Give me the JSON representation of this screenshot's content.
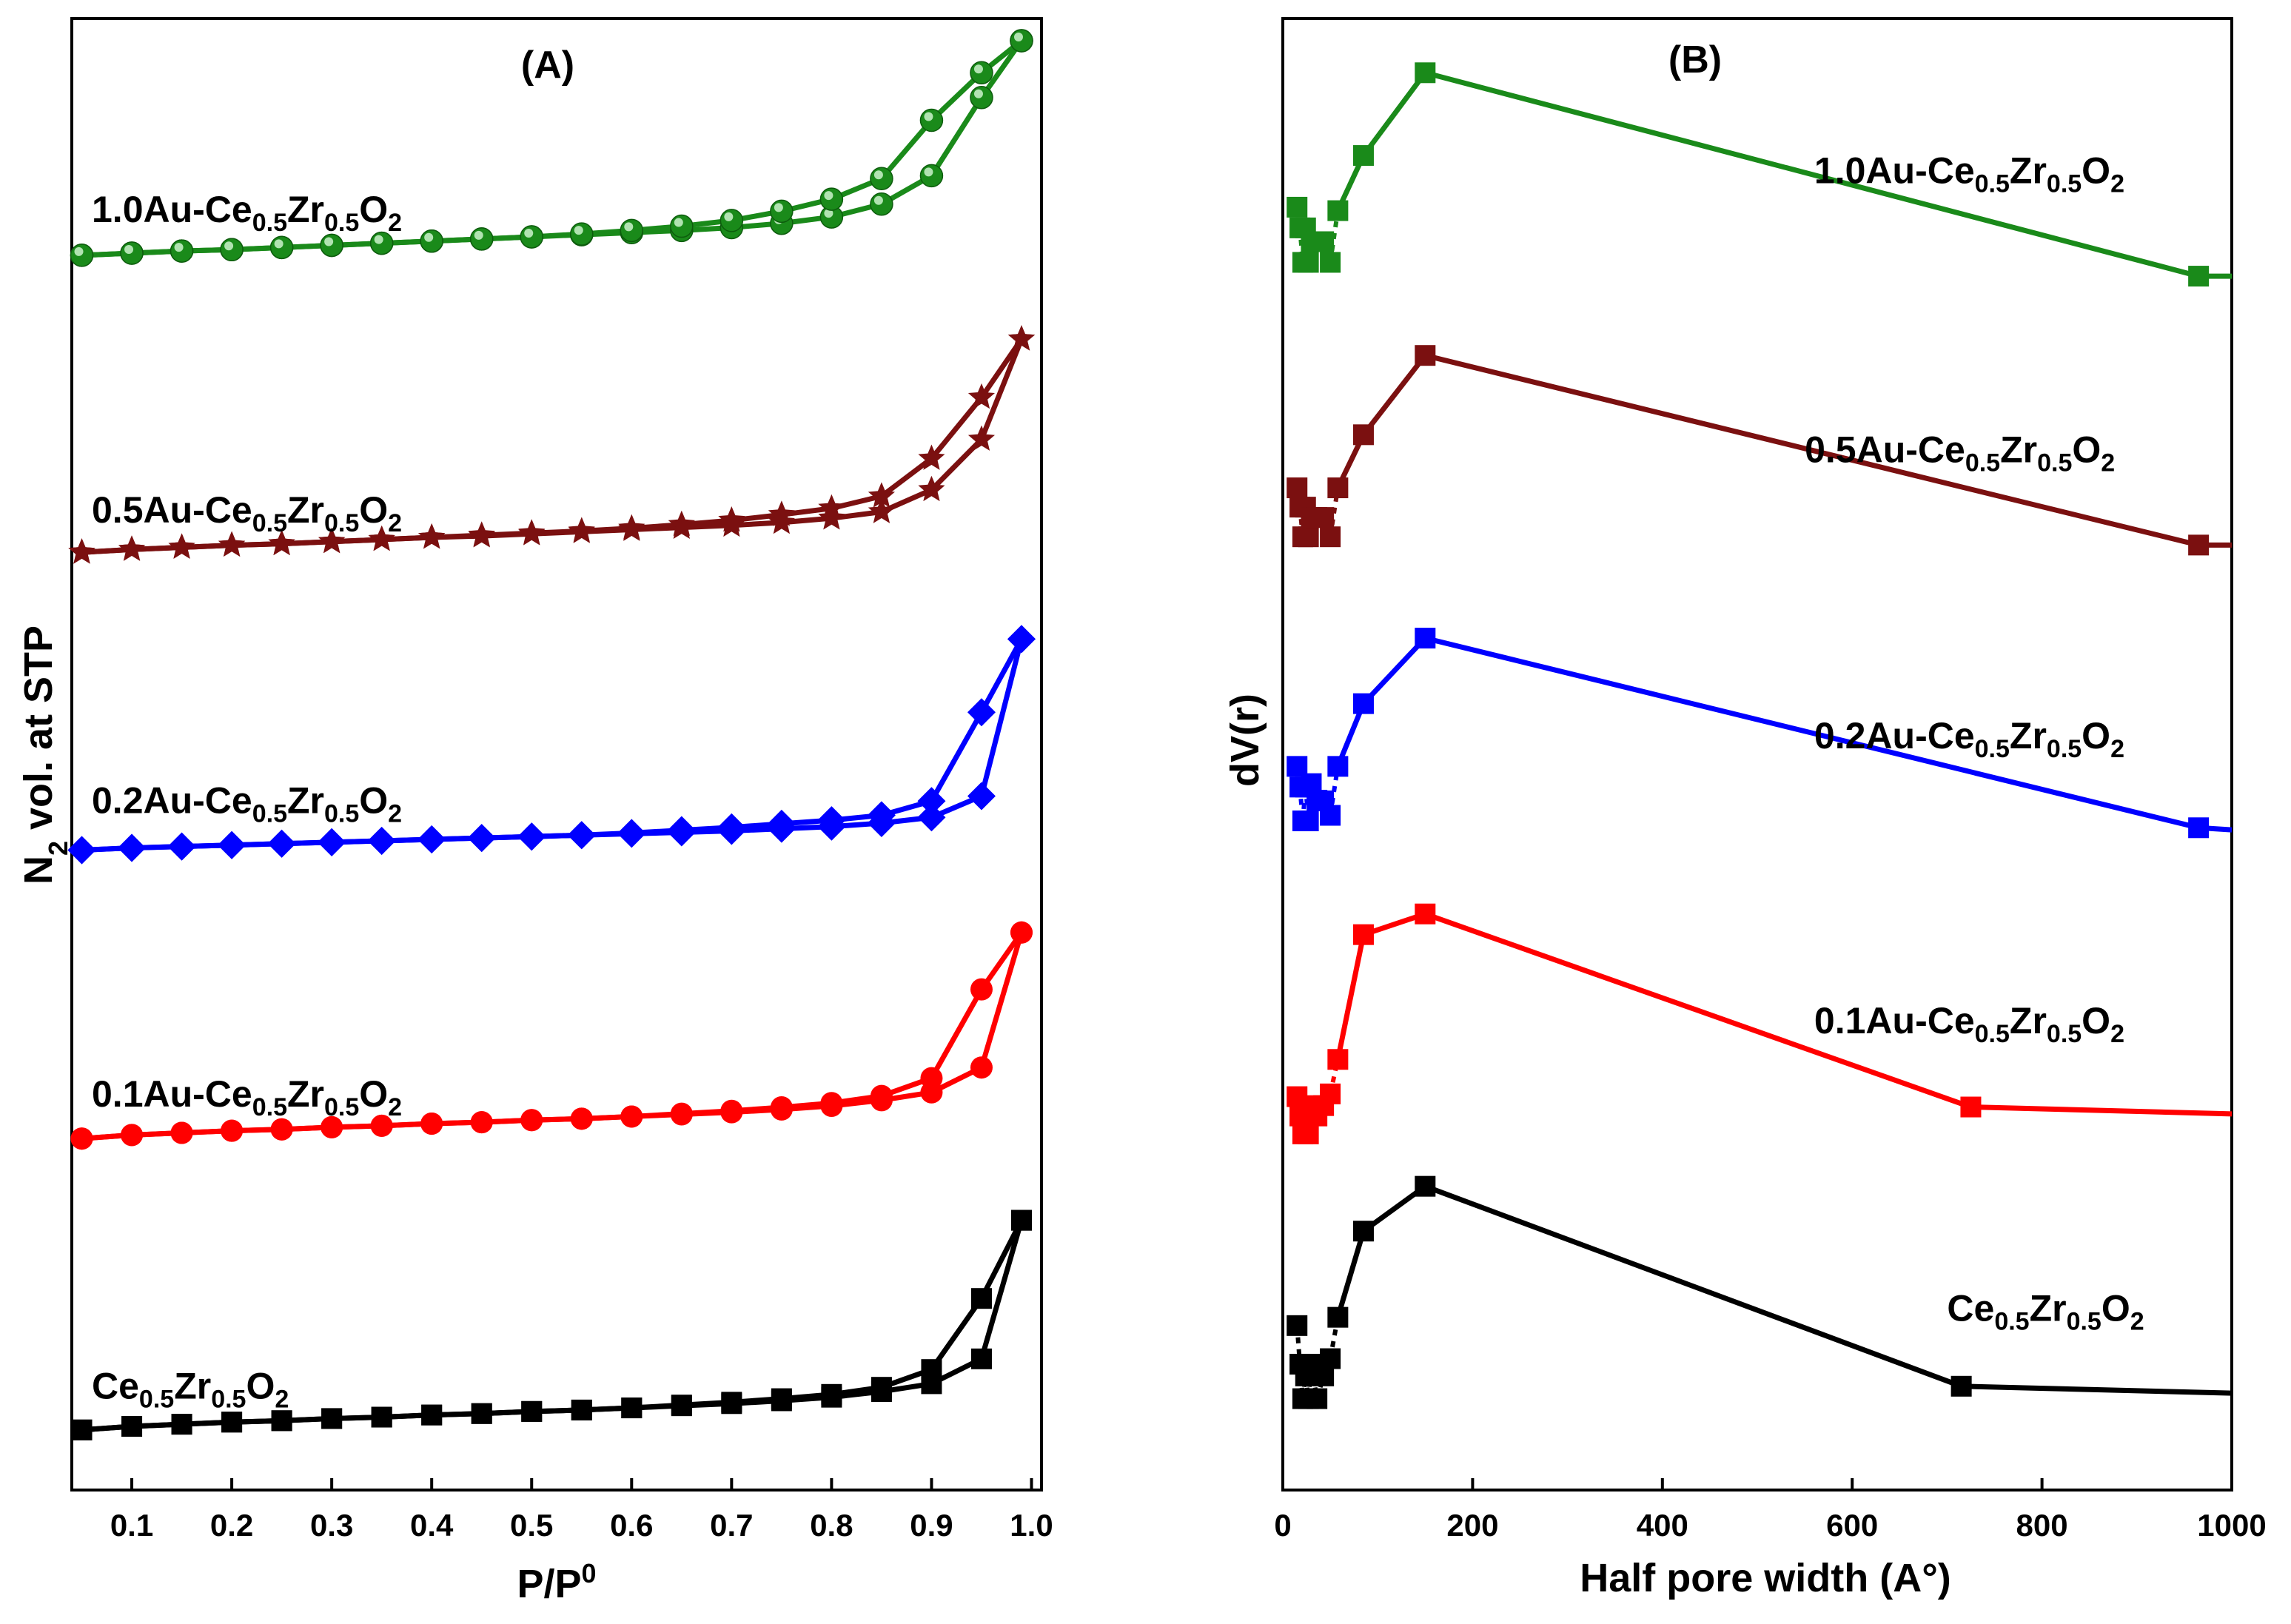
{
  "chart_data": [
    {
      "panel_label": "(A)",
      "type": "line",
      "xlabel_main": "P/P",
      "xlabel_sup": "0",
      "ylabel_pre": "N",
      "ylabel_sub": "2",
      "ylabel_post": " vol. at STP",
      "xlim": [
        0.04,
        1.01
      ],
      "x_ticks": [
        0.1,
        0.2,
        0.3,
        0.4,
        0.5,
        0.6,
        0.7,
        0.8,
        0.9,
        1.0
      ],
      "x_tick_labels": [
        "0.1",
        "0.2",
        "0.3",
        "0.4",
        "0.5",
        "0.6",
        "0.7",
        "0.8",
        "0.9",
        "1.0"
      ],
      "ylim": [
        0,
        20
      ],
      "y_ticks_shown": false,
      "note_y_units": "arbitrary offset units (curves stacked)",
      "series": [
        {
          "label_parts": [
            "Ce",
            "0.5",
            "Zr",
            "0.5",
            "O",
            "2"
          ],
          "label_anchor": [
            0.06,
            0.89
          ],
          "color": "#000000",
          "marker": "square",
          "adsorption": {
            "x": [
              0.05,
              0.1,
              0.15,
              0.2,
              0.25,
              0.3,
              0.35,
              0.4,
              0.45,
              0.5,
              0.55,
              0.6,
              0.65,
              0.7,
              0.75,
              0.8,
              0.85,
              0.9,
              0.95,
              0.99
            ],
            "y": [
              0.45,
              0.5,
              0.53,
              0.56,
              0.58,
              0.61,
              0.63,
              0.66,
              0.68,
              0.71,
              0.73,
              0.76,
              0.79,
              0.82,
              0.86,
              0.91,
              0.99,
              1.1,
              1.45,
              3.4
            ]
          },
          "desorption": {
            "x": [
              0.99,
              0.95,
              0.9,
              0.85,
              0.8,
              0.75,
              0.7,
              0.65,
              0.6,
              0.55,
              0.5,
              0.45,
              0.4,
              0.35,
              0.3,
              0.25,
              0.2,
              0.15,
              0.1,
              0.05
            ],
            "y": [
              3.4,
              2.3,
              1.3,
              1.05,
              0.95,
              0.89,
              0.84,
              0.8,
              0.76,
              0.73,
              0.71,
              0.68,
              0.66,
              0.63,
              0.61,
              0.58,
              0.56,
              0.53,
              0.5,
              0.45
            ]
          }
        },
        {
          "label_parts": [
            "0.1Au-Ce",
            "0.5",
            "Zr",
            "0.5",
            "O",
            "2"
          ],
          "label_anchor": [
            0.06,
            5.0
          ],
          "color": "#ff0000",
          "marker": "circle",
          "adsorption": {
            "x": [
              0.05,
              0.1,
              0.15,
              0.2,
              0.25,
              0.3,
              0.35,
              0.4,
              0.45,
              0.5,
              0.55,
              0.6,
              0.65,
              0.7,
              0.75,
              0.8,
              0.85,
              0.9,
              0.95,
              0.99
            ],
            "y": [
              4.55,
              4.6,
              4.63,
              4.66,
              4.68,
              4.71,
              4.73,
              4.76,
              4.78,
              4.81,
              4.83,
              4.86,
              4.89,
              4.92,
              4.96,
              5.01,
              5.09,
              5.2,
              5.55,
              7.45
            ]
          },
          "desorption": {
            "x": [
              0.99,
              0.95,
              0.9,
              0.85,
              0.8,
              0.75,
              0.7,
              0.65,
              0.6,
              0.55,
              0.5,
              0.45,
              0.4,
              0.35,
              0.3,
              0.25,
              0.2,
              0.15,
              0.1,
              0.05
            ],
            "y": [
              7.45,
              6.65,
              5.4,
              5.15,
              5.05,
              4.99,
              4.94,
              4.9,
              4.86,
              4.83,
              4.81,
              4.78,
              4.76,
              4.73,
              4.71,
              4.68,
              4.66,
              4.63,
              4.6,
              4.55
            ]
          }
        },
        {
          "label_parts": [
            "0.2Au-Ce",
            "0.5",
            "Zr",
            "0.5",
            "O",
            "2"
          ],
          "label_anchor": [
            0.06,
            9.13
          ],
          "color": "#0000ff",
          "marker": "diamond",
          "adsorption": {
            "x": [
              0.05,
              0.1,
              0.15,
              0.2,
              0.25,
              0.3,
              0.35,
              0.4,
              0.45,
              0.5,
              0.55,
              0.6,
              0.65,
              0.7,
              0.75,
              0.8,
              0.85,
              0.9,
              0.95,
              0.99
            ],
            "y": [
              8.61,
              8.64,
              8.66,
              8.68,
              8.7,
              8.72,
              8.74,
              8.76,
              8.78,
              8.8,
              8.82,
              8.84,
              8.86,
              8.88,
              8.91,
              8.94,
              8.99,
              9.07,
              9.37,
              11.58
            ]
          },
          "desorption": {
            "x": [
              0.99,
              0.95,
              0.9,
              0.85,
              0.8,
              0.75,
              0.7,
              0.65,
              0.6,
              0.55,
              0.5,
              0.45,
              0.4,
              0.35,
              0.3,
              0.25,
              0.2,
              0.15,
              0.1,
              0.05
            ],
            "y": [
              11.58,
              10.55,
              9.3,
              9.1,
              9.03,
              8.98,
              8.93,
              8.89,
              8.85,
              8.82,
              8.8,
              8.78,
              8.76,
              8.74,
              8.72,
              8.7,
              8.68,
              8.66,
              8.64,
              8.61
            ]
          }
        },
        {
          "label_parts": [
            "0.5Au-Ce",
            "0.5",
            "Zr",
            "0.5",
            "O",
            "2"
          ],
          "label_anchor": [
            0.06,
            13.22
          ],
          "color": "#7b1010",
          "marker": "star",
          "adsorption": {
            "x": [
              0.05,
              0.1,
              0.15,
              0.2,
              0.25,
              0.3,
              0.35,
              0.4,
              0.45,
              0.5,
              0.55,
              0.6,
              0.65,
              0.7,
              0.75,
              0.8,
              0.85,
              0.9,
              0.95,
              0.99
            ],
            "y": [
              12.8,
              12.84,
              12.87,
              12.9,
              12.92,
              12.95,
              12.98,
              13.01,
              13.03,
              13.06,
              13.09,
              13.12,
              13.15,
              13.18,
              13.22,
              13.28,
              13.37,
              13.68,
              14.39,
              15.8
            ]
          },
          "desorption": {
            "x": [
              0.99,
              0.95,
              0.9,
              0.85,
              0.8,
              0.75,
              0.7,
              0.65,
              0.6,
              0.55,
              0.5,
              0.45,
              0.4,
              0.35,
              0.3,
              0.25,
              0.2,
              0.15,
              0.1,
              0.05
            ],
            "y": [
              15.8,
              14.98,
              14.12,
              13.59,
              13.42,
              13.33,
              13.25,
              13.19,
              13.14,
              13.1,
              13.07,
              13.04,
              13.01,
              12.98,
              12.95,
              12.92,
              12.9,
              12.87,
              12.84,
              12.8
            ]
          }
        },
        {
          "label_parts": [
            "1.0Au-Ce",
            "0.5",
            "Zr",
            "0.5",
            "O",
            "2"
          ],
          "label_anchor": [
            0.06,
            17.45
          ],
          "color": "#1a8a1a",
          "marker": "sphere",
          "adsorption": {
            "x": [
              0.05,
              0.1,
              0.15,
              0.2,
              0.25,
              0.3,
              0.35,
              0.4,
              0.45,
              0.5,
              0.55,
              0.6,
              0.65,
              0.7,
              0.75,
              0.8,
              0.85,
              0.9,
              0.95,
              0.99
            ],
            "y": [
              16.98,
              17.01,
              17.04,
              17.06,
              17.09,
              17.12,
              17.15,
              17.18,
              17.21,
              17.24,
              17.27,
              17.3,
              17.33,
              17.37,
              17.43,
              17.52,
              17.7,
              18.1,
              19.2,
              20.0
            ]
          },
          "desorption": {
            "x": [
              0.99,
              0.95,
              0.9,
              0.85,
              0.8,
              0.75,
              0.7,
              0.65,
              0.6,
              0.55,
              0.5,
              0.45,
              0.4,
              0.35,
              0.3,
              0.25,
              0.2,
              0.15,
              0.1,
              0.05
            ],
            "y": [
              20.0,
              19.55,
              18.88,
              18.06,
              17.77,
              17.6,
              17.47,
              17.39,
              17.33,
              17.28,
              17.24,
              17.21,
              17.18,
              17.15,
              17.12,
              17.09,
              17.06,
              17.04,
              17.01,
              16.98
            ]
          }
        }
      ]
    },
    {
      "panel_label": "(B)",
      "type": "line",
      "xlabel": "Half pore width (A°)",
      "ylabel": "dV(r)",
      "xlim": [
        0,
        1000
      ],
      "x_ticks": [
        0,
        200,
        400,
        600,
        800,
        1000
      ],
      "x_tick_labels": [
        "0",
        "200",
        "400",
        "600",
        "800",
        "1000"
      ],
      "ylim": [
        0,
        20
      ],
      "y_ticks_shown": false,
      "marker": "square",
      "series": [
        {
          "label_parts": [
            "Ce",
            "0.5",
            "Zr",
            "0.5",
            "O",
            "2"
          ],
          "label_anchor": [
            700,
            1.65
          ],
          "color": "#000000",
          "x": [
            15,
            18,
            21,
            24,
            27,
            30,
            36,
            43,
            50,
            58,
            85,
            150,
            715,
            1000
          ],
          "y": [
            1.58,
            1.02,
            0.52,
            0.85,
            0.52,
            1.02,
            0.52,
            0.85,
            1.1,
            1.7,
            2.95,
            3.6,
            0.7,
            0.6
          ],
          "line_starts_at_index": 9
        },
        {
          "label_parts": [
            "0.1Au-Ce",
            "0.5",
            "Zr",
            "0.5",
            "O",
            "2"
          ],
          "label_anchor": [
            560,
            5.82
          ],
          "color": "#ff0000",
          "x": [
            15,
            18,
            21,
            24,
            27,
            30,
            36,
            43,
            50,
            58,
            85,
            150,
            725,
            1000
          ],
          "y": [
            4.9,
            4.62,
            4.36,
            4.62,
            4.36,
            4.77,
            4.62,
            4.77,
            4.94,
            5.44,
            7.25,
            7.55,
            4.75,
            4.65
          ],
          "line_starts_at_index": 9
        },
        {
          "label_parts": [
            "0.2Au-Ce",
            "0.5",
            "Zr",
            "0.5",
            "O",
            "2"
          ],
          "label_anchor": [
            560,
            9.95
          ],
          "color": "#0000ff",
          "x": [
            15,
            18,
            21,
            24,
            27,
            30,
            36,
            43,
            50,
            58,
            85,
            150,
            965,
            1000
          ],
          "y": [
            9.69,
            9.39,
            8.9,
            9.39,
            8.9,
            9.44,
            9.2,
            9.19,
            8.98,
            9.69,
            10.6,
            11.55,
            8.8,
            8.77
          ],
          "line_starts_at_index": 9
        },
        {
          "label_parts": [
            "0.5Au-Ce",
            "0.5",
            "Zr",
            "0.5",
            "O",
            "2"
          ],
          "label_anchor": [
            550,
            14.1
          ],
          "color": "#7b1010",
          "x": [
            15,
            18,
            21,
            24,
            27,
            30,
            36,
            43,
            50,
            58,
            85,
            150,
            965,
            1000
          ],
          "y": [
            13.73,
            13.45,
            13.02,
            13.45,
            13.02,
            13.3,
            13.3,
            13.3,
            13.02,
            13.73,
            14.5,
            15.65,
            12.9,
            12.9
          ],
          "line_starts_at_index": 9
        },
        {
          "label_parts": [
            "1.0Au-Ce",
            "0.5",
            "Zr",
            "0.5",
            "O",
            "2"
          ],
          "label_anchor": [
            560,
            18.15
          ],
          "color": "#1a8a1a",
          "x": [
            15,
            18,
            21,
            24,
            27,
            30,
            36,
            43,
            50,
            58,
            85,
            150,
            965,
            1000
          ],
          "y": [
            17.8,
            17.5,
            17.0,
            17.5,
            17.0,
            17.3,
            17.3,
            17.3,
            17.0,
            17.75,
            18.55,
            19.75,
            16.8,
            16.8
          ],
          "line_starts_at_index": 9
        }
      ]
    }
  ]
}
